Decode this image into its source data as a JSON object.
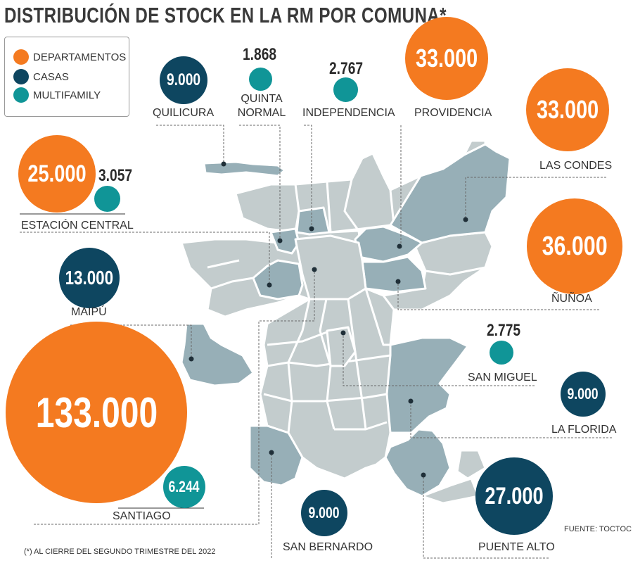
{
  "title": "DISTRIBUCIÓN DE STOCK EN LA RM POR COMUNA*",
  "legend": [
    {
      "label": "DEPARTAMENTOS",
      "color": "#f47a20"
    },
    {
      "label": "CASAS",
      "color": "#0e4660"
    },
    {
      "label": "MULTIFAMILY",
      "color": "#109597"
    }
  ],
  "colors": {
    "map_light": "#c3cccd",
    "map_highlight": "#97afb7",
    "borders": "#ffffff",
    "leader": "#6a6a6a"
  },
  "communes": {
    "quilicura": {
      "name": "QUILICURA",
      "casas": "9.000"
    },
    "quinta_normal": {
      "name_line1": "QUINTA",
      "name_line2": "NORMAL",
      "multifamily": "1.868"
    },
    "independencia": {
      "name": "INDEPENDENCIA",
      "multifamily": "2.767"
    },
    "providencia": {
      "name": "PROVIDENCIA",
      "departamentos": "33.000"
    },
    "las_condes": {
      "name": "LAS CONDES",
      "departamentos": "33.000"
    },
    "estacion_central": {
      "name": "ESTACIÓN CENTRAL",
      "departamentos": "25.000",
      "multifamily": "3.057"
    },
    "maipu": {
      "name": "MAIPÚ",
      "casas": "13.000"
    },
    "nunoa": {
      "name": "ÑUÑOA",
      "departamentos": "36.000"
    },
    "san_miguel": {
      "name": "SAN MIGUEL",
      "multifamily": "2.775"
    },
    "la_florida": {
      "name": "LA FLORIDA",
      "casas": "9.000"
    },
    "santiago": {
      "name": "SANTIAGO",
      "departamentos": "133.000",
      "multifamily": "6.244"
    },
    "san_bernardo": {
      "name": "SAN BERNARDO",
      "casas": "9.000"
    },
    "puente_alto": {
      "name": "PUENTE ALTO",
      "casas": "27.000"
    }
  },
  "source": "FUENTE: TOCTOC",
  "footnote": "(*) AL CIERRE DEL SEGUNDO TRIMESTRE DEL 2022"
}
